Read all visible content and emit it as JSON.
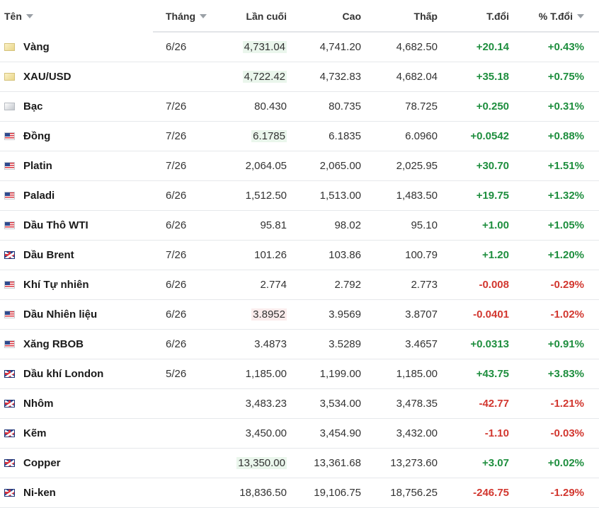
{
  "header": {
    "name": "Tên",
    "month": "Tháng",
    "last": "Lần cuối",
    "high": "Cao",
    "low": "Thấp",
    "change": "T.đổi",
    "pct_change": "% T.đổi"
  },
  "colors": {
    "up": "#1e8e3e",
    "down": "#d2372f"
  },
  "rows": [
    {
      "icon": "gold-icon",
      "name": "Vàng",
      "month": "6/26",
      "last": "4,731.04",
      "last_flash": "up",
      "high": "4,741.20",
      "low": "4,682.50",
      "change": "+20.14",
      "pct": "+0.43%",
      "dir": "up"
    },
    {
      "icon": "gold-icon",
      "name": "XAU/USD",
      "month": "",
      "last": "4,722.42",
      "last_flash": "up",
      "high": "4,732.83",
      "low": "4,682.04",
      "change": "+35.18",
      "pct": "+0.75%",
      "dir": "up"
    },
    {
      "icon": "silver-icon",
      "name": "Bạc",
      "month": "7/26",
      "last": "80.430",
      "last_flash": "",
      "high": "80.735",
      "low": "78.725",
      "change": "+0.250",
      "pct": "+0.31%",
      "dir": "up"
    },
    {
      "icon": "us-flag-icon",
      "name": "Đồng",
      "month": "7/26",
      "last": "6.1785",
      "last_flash": "up",
      "high": "6.1835",
      "low": "6.0960",
      "change": "+0.0542",
      "pct": "+0.88%",
      "dir": "up"
    },
    {
      "icon": "us-flag-icon",
      "name": "Platin",
      "month": "7/26",
      "last": "2,064.05",
      "last_flash": "",
      "high": "2,065.00",
      "low": "2,025.95",
      "change": "+30.70",
      "pct": "+1.51%",
      "dir": "up"
    },
    {
      "icon": "us-flag-icon",
      "name": "Paladi",
      "month": "6/26",
      "last": "1,512.50",
      "last_flash": "",
      "high": "1,513.00",
      "low": "1,483.50",
      "change": "+19.75",
      "pct": "+1.32%",
      "dir": "up"
    },
    {
      "icon": "us-flag-icon",
      "name": "Dầu Thô WTI",
      "month": "6/26",
      "last": "95.81",
      "last_flash": "",
      "high": "98.02",
      "low": "95.10",
      "change": "+1.00",
      "pct": "+1.05%",
      "dir": "up"
    },
    {
      "icon": "uk-flag-icon",
      "name": "Dầu Brent",
      "month": "7/26",
      "last": "101.26",
      "last_flash": "",
      "high": "103.86",
      "low": "100.79",
      "change": "+1.20",
      "pct": "+1.20%",
      "dir": "up"
    },
    {
      "icon": "us-flag-icon",
      "name": "Khí Tự nhiên",
      "month": "6/26",
      "last": "2.774",
      "last_flash": "",
      "high": "2.792",
      "low": "2.773",
      "change": "-0.008",
      "pct": "-0.29%",
      "dir": "down"
    },
    {
      "icon": "us-flag-icon",
      "name": "Dầu Nhiên liệu",
      "month": "6/26",
      "last": "3.8952",
      "last_flash": "down",
      "high": "3.9569",
      "low": "3.8707",
      "change": "-0.0401",
      "pct": "-1.02%",
      "dir": "down"
    },
    {
      "icon": "us-flag-icon",
      "name": "Xăng RBOB",
      "month": "6/26",
      "last": "3.4873",
      "last_flash": "",
      "high": "3.5289",
      "low": "3.4657",
      "change": "+0.0313",
      "pct": "+0.91%",
      "dir": "up"
    },
    {
      "icon": "uk-flag-icon",
      "name": "Dầu khí London",
      "month": "5/26",
      "last": "1,185.00",
      "last_flash": "",
      "high": "1,199.00",
      "low": "1,185.00",
      "change": "+43.75",
      "pct": "+3.83%",
      "dir": "up"
    },
    {
      "icon": "uk-flag-icon",
      "name": "Nhôm",
      "month": "",
      "last": "3,483.23",
      "last_flash": "",
      "high": "3,534.00",
      "low": "3,478.35",
      "change": "-42.77",
      "pct": "-1.21%",
      "dir": "down"
    },
    {
      "icon": "uk-flag-icon",
      "name": "Kẽm",
      "month": "",
      "last": "3,450.00",
      "last_flash": "",
      "high": "3,454.90",
      "low": "3,432.00",
      "change": "-1.10",
      "pct": "-0.03%",
      "dir": "down"
    },
    {
      "icon": "uk-flag-icon",
      "name": "Copper",
      "month": "",
      "last": "13,350.00",
      "last_flash": "up",
      "high": "13,361.68",
      "low": "13,273.60",
      "change": "+3.07",
      "pct": "+0.02%",
      "dir": "up"
    },
    {
      "icon": "uk-flag-icon",
      "name": "Ni-ken",
      "month": "",
      "last": "18,836.50",
      "last_flash": "",
      "high": "19,106.75",
      "low": "18,756.25",
      "change": "-246.75",
      "pct": "-1.29%",
      "dir": "down"
    }
  ]
}
